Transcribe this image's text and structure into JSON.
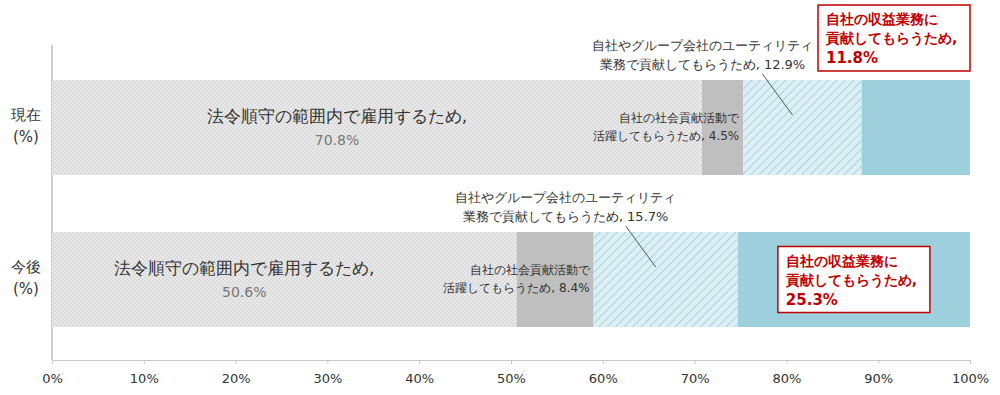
{
  "chart_data": {
    "type": "bar",
    "orientation": "horizontal",
    "stacked": true,
    "data_labels": true,
    "grid": false,
    "categories": [
      "現在(%)",
      "今後(%)"
    ],
    "series": [
      {
        "name": "法令順守の範囲内で雇用するため,",
        "color": "#e8e8e8",
        "values": [
          70.8,
          50.6
        ],
        "value_labels": [
          "70.8%",
          "50.6%"
        ]
      },
      {
        "name": "自社の社会貢献活動で活躍してもらうため,",
        "color": "#bfbfbf",
        "values": [
          4.5,
          8.4
        ],
        "value_labels": [
          "4.5%",
          "8.4%"
        ]
      },
      {
        "name": "自社やグループ会社のユーティリティ業務で貢献してもらうため,",
        "color": "#dceff4",
        "values": [
          12.9,
          15.7
        ],
        "value_labels": [
          "12.9%",
          "15.7%"
        ]
      },
      {
        "name": "自社の収益業務に貢献してもらうため,",
        "color": "#9ecfdc",
        "values": [
          11.8,
          25.3
        ],
        "value_labels": [
          "11.8%",
          "25.3%"
        ]
      }
    ],
    "xlim": [
      0,
      100
    ],
    "xticks": [
      {
        "value": 0,
        "label": "0%"
      },
      {
        "value": 10,
        "label": "10%"
      },
      {
        "value": 20,
        "label": "20%"
      },
      {
        "value": 30,
        "label": "30%"
      },
      {
        "value": 40,
        "label": "40%"
      },
      {
        "value": 50,
        "label": "50%"
      },
      {
        "value": 60,
        "label": "60%"
      },
      {
        "value": 70,
        "label": "70%"
      },
      {
        "value": 80,
        "label": "80%"
      },
      {
        "value": 90,
        "label": "90%"
      },
      {
        "value": 100,
        "label": "100%"
      }
    ]
  }
}
